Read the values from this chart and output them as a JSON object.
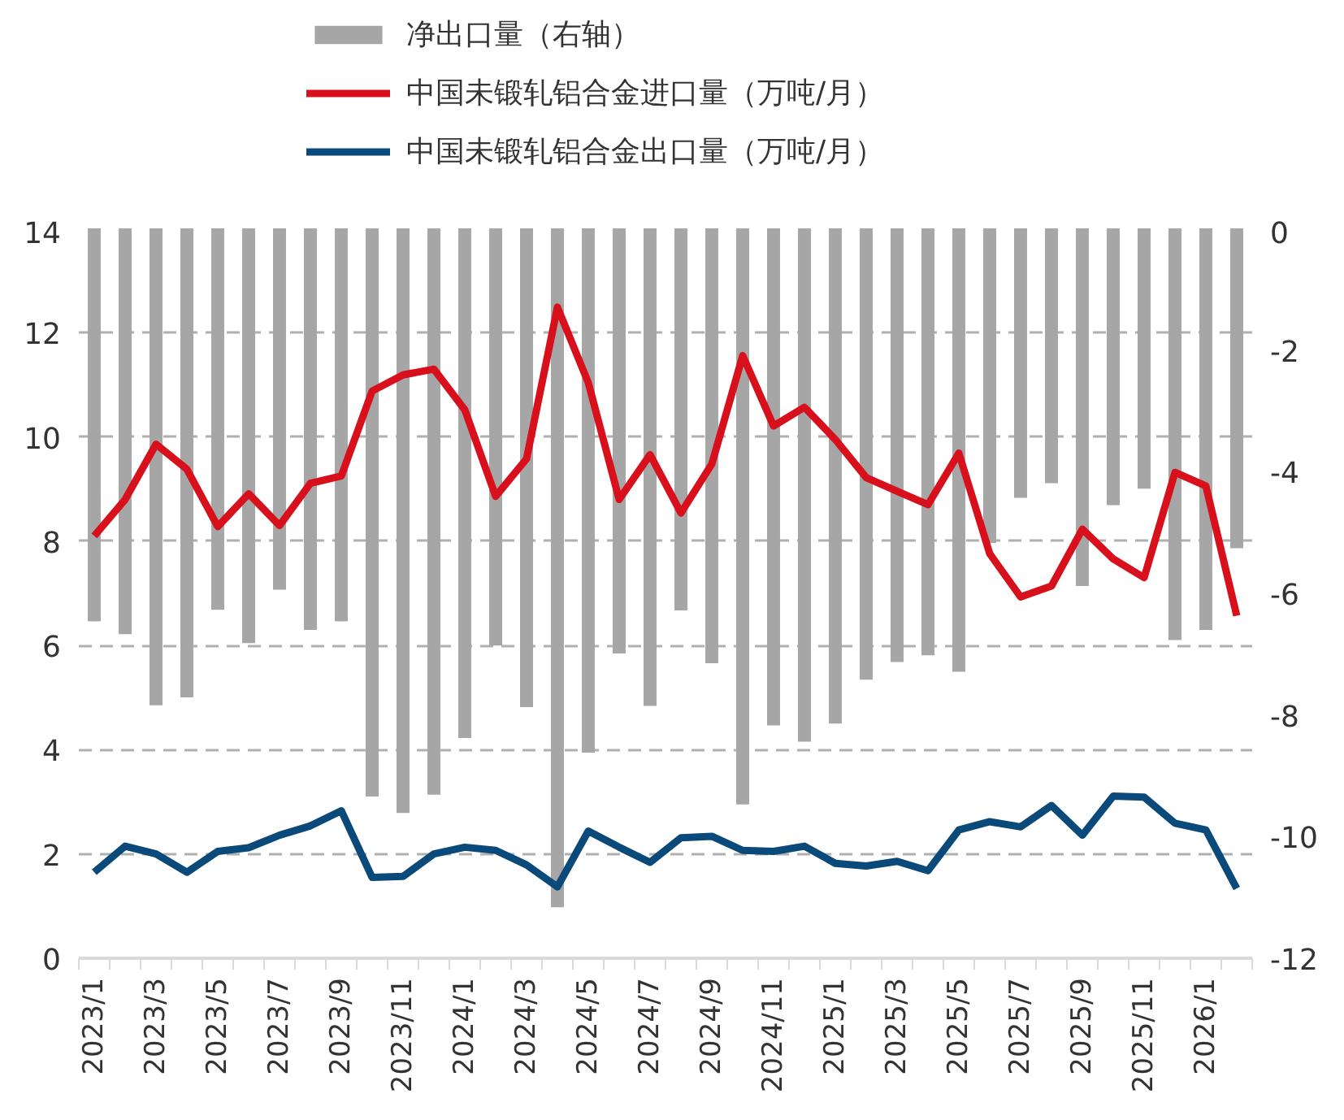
{
  "chart_data": {
    "type": "line",
    "categories": [
      "2023/1",
      null,
      "2023/3",
      null,
      "2023/5",
      null,
      "2023/7",
      null,
      "2023/9",
      null,
      "2023/11",
      null,
      "2024/1",
      null,
      "2024/3",
      null,
      "2024/5",
      null,
      "2024/7",
      null,
      "2024/9",
      null,
      "2024/11",
      null,
      "2025/1",
      null,
      "2025/3",
      null,
      "2025/5",
      null,
      "2025/7",
      null,
      "2025/9",
      null,
      "2025/11",
      null,
      "2026/1",
      null
    ],
    "series": [
      {
        "name": "净出口量（右轴）",
        "type": "bar",
        "axis": "y2",
        "color": "#a6a6a6",
        "values": [
          -6.46,
          -6.67,
          -7.84,
          -7.71,
          -6.27,
          -6.82,
          -5.94,
          -6.6,
          -6.46,
          -9.34,
          -9.61,
          -9.31,
          -8.38,
          -6.86,
          -7.87,
          -11.16,
          -8.62,
          -6.99,
          -7.85,
          -6.28,
          -7.15,
          -9.47,
          -8.17,
          -8.44,
          -8.14,
          -7.42,
          -7.13,
          -7.02,
          -7.29,
          -5.17,
          -4.43,
          -4.19,
          -5.88,
          -4.55,
          -4.28,
          -6.77,
          -6.6,
          -5.26
        ]
      },
      {
        "name": "中国未锻轧铝合金进口量（万吨/月）",
        "color": "#d7101c",
        "values": [
          8.1,
          8.8,
          9.86,
          9.38,
          8.28,
          8.91,
          8.3,
          9.11,
          9.25,
          10.88,
          11.19,
          11.3,
          10.52,
          8.86,
          9.58,
          12.49,
          11.04,
          8.8,
          9.66,
          8.54,
          9.48,
          11.56,
          10.21,
          10.57,
          9.95,
          9.22,
          8.96,
          8.7,
          9.69,
          7.76,
          6.93,
          7.14,
          8.23,
          7.66,
          7.3,
          9.32,
          9.06,
          6.57
        ]
      },
      {
        "name": "中国未锻轧铝合金出口量（万吨/月）",
        "color": "#0a4a7a",
        "values": [
          1.65,
          2.15,
          2.0,
          1.65,
          2.05,
          2.12,
          2.36,
          2.54,
          2.83,
          1.55,
          1.57,
          2.0,
          2.13,
          2.07,
          1.79,
          1.37,
          2.44,
          2.13,
          1.84,
          2.31,
          2.34,
          2.07,
          2.05,
          2.15,
          1.82,
          1.77,
          1.86,
          1.68,
          2.46,
          2.62,
          2.52,
          2.93,
          2.36,
          3.11,
          3.09,
          2.59,
          2.46,
          1.34
        ]
      }
    ],
    "ylim": [
      0,
      14
    ],
    "yticks": [
      0,
      2,
      4,
      6,
      8,
      10,
      12,
      14
    ],
    "y2lim": [
      -12,
      0
    ],
    "y2ticks": [
      -12,
      -10,
      -8,
      -6,
      -4,
      -2,
      0
    ],
    "grid": "y",
    "legend": "top",
    "marker": "none",
    "line_style": "solid"
  }
}
